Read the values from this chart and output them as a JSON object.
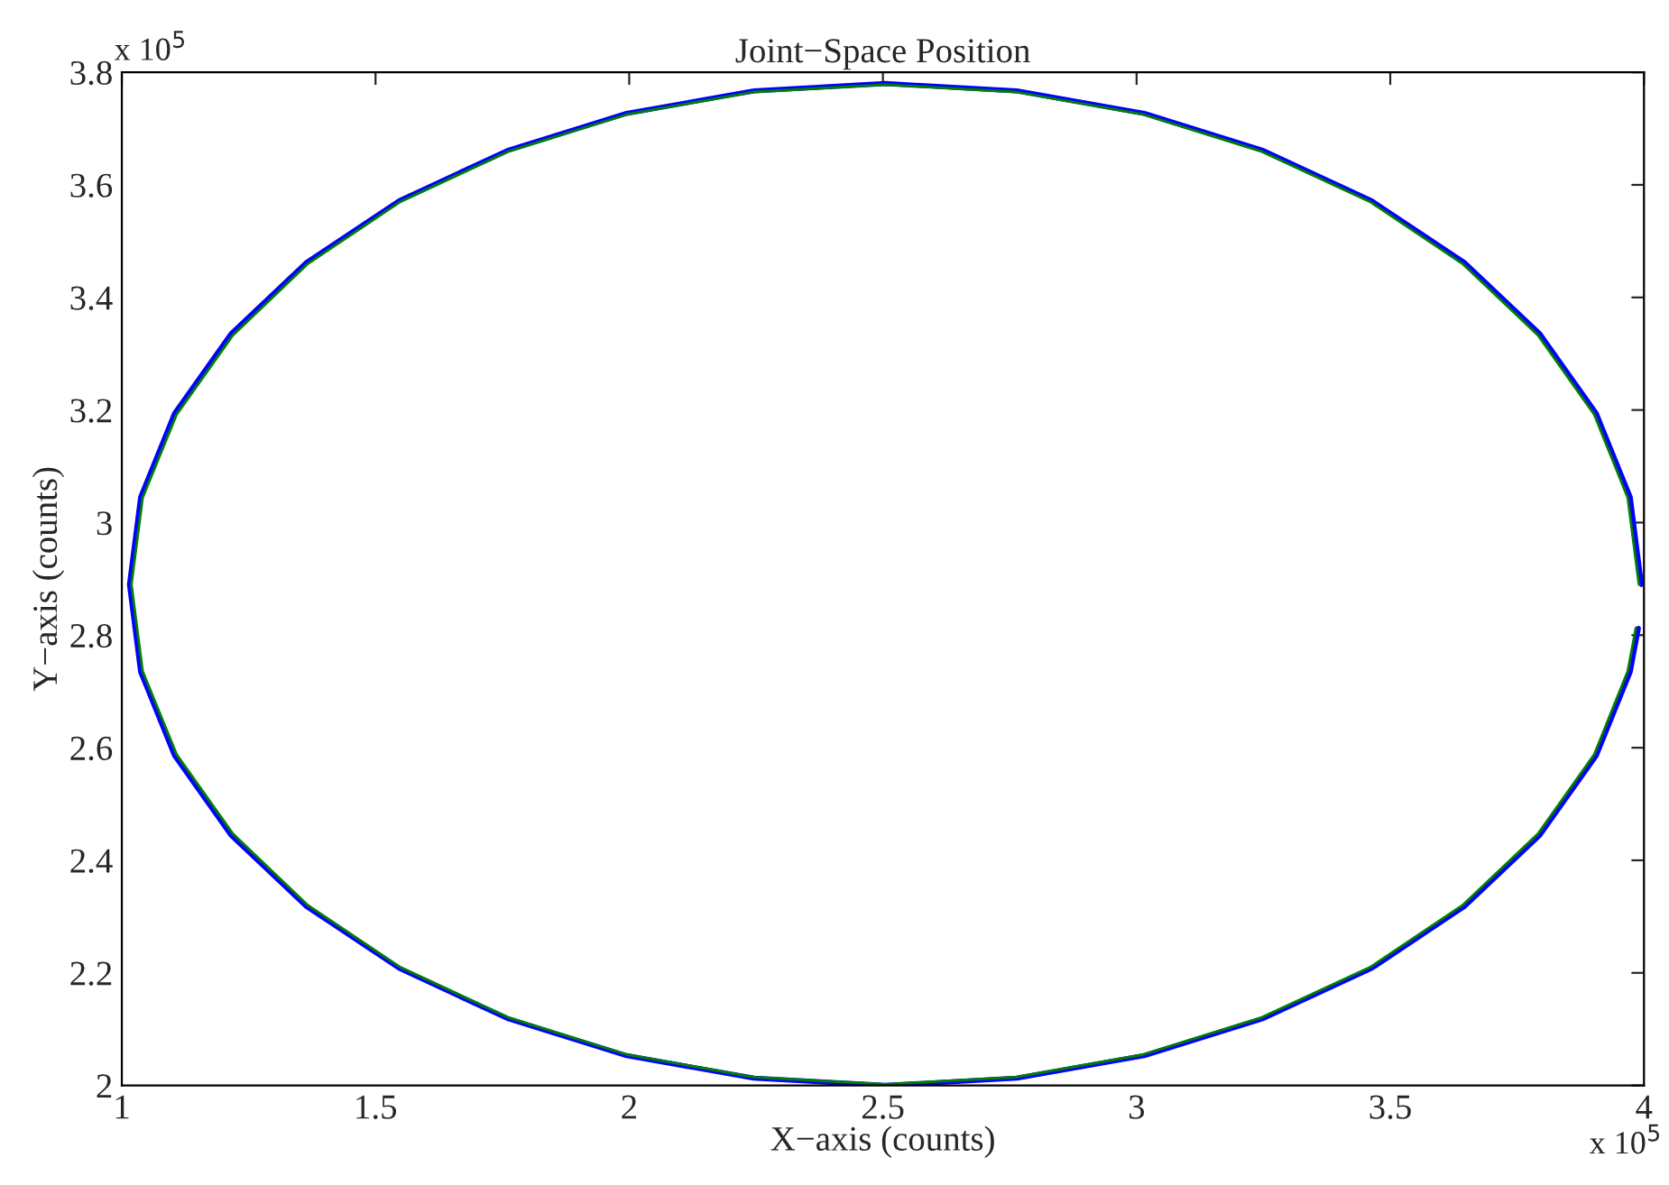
{
  "chart_data": {
    "type": "line",
    "title": "Joint−Space Position",
    "xlabel": "X−axis (counts)",
    "ylabel": "Y−axis (counts)",
    "annotations": [
      "x 10$^{5}$",
      "x 10$^{5}$"
    ],
    "xlim": [
      1,
      4
    ],
    "ylim": [
      2,
      3.8
    ],
    "xticks": [
      1,
      1.5,
      2,
      2.5,
      3,
      3.5,
      4
    ],
    "yticks": [
      2,
      2.2,
      2.4,
      2.6,
      2.8,
      3,
      3.2,
      3.4,
      3.6,
      3.8
    ],
    "grid": false,
    "marker": "none",
    "line_style": "solid",
    "series": [
      {
        "color": "#0000ff",
        "x": [
          3.995,
          3.973,
          3.906,
          3.795,
          3.646,
          3.463,
          3.25,
          3.015,
          2.764,
          2.505,
          2.246,
          1.995,
          1.76,
          1.547,
          1.364,
          1.215,
          1.104,
          1.037,
          1.015,
          1.037,
          1.104,
          1.215,
          1.364,
          1.547,
          1.76,
          1.995,
          2.246,
          2.505,
          2.764,
          3.015,
          3.25,
          3.463,
          3.646,
          3.795,
          3.906,
          3.973,
          3.989
        ],
        "values": [
          2.89,
          3.045,
          3.194,
          3.335,
          3.462,
          3.572,
          3.661,
          3.727,
          3.767,
          3.78,
          3.767,
          3.727,
          3.661,
          3.572,
          3.462,
          3.335,
          3.194,
          3.045,
          2.89,
          2.735,
          2.586,
          2.445,
          2.318,
          2.208,
          2.119,
          2.053,
          2.013,
          2.0,
          2.013,
          2.053,
          2.119,
          2.208,
          2.318,
          2.445,
          2.586,
          2.735,
          2.812
        ]
      },
      {
        "color": "#008000",
        "x": [
          3.99,
          3.968,
          3.902,
          3.791,
          3.642,
          3.46,
          3.247,
          3.013,
          2.762,
          2.504,
          2.245,
          1.995,
          1.761,
          1.549,
          1.367,
          1.219,
          1.108,
          1.041,
          1.019,
          1.041,
          1.108,
          1.219,
          1.367,
          1.549,
          1.761,
          1.995,
          2.245,
          2.504,
          2.762,
          3.013,
          3.247,
          3.46,
          3.642,
          3.791,
          3.902,
          3.968,
          3.984
        ],
        "values": [
          2.89,
          3.044,
          3.192,
          3.333,
          3.46,
          3.57,
          3.659,
          3.725,
          3.765,
          3.778,
          3.765,
          3.725,
          3.659,
          3.57,
          3.46,
          3.333,
          3.192,
          3.044,
          2.89,
          2.736,
          2.588,
          2.447,
          2.32,
          2.21,
          2.121,
          2.055,
          2.015,
          2.002,
          2.015,
          2.055,
          2.121,
          2.21,
          2.32,
          2.447,
          2.588,
          2.736,
          2.813
        ]
      }
    ]
  }
}
